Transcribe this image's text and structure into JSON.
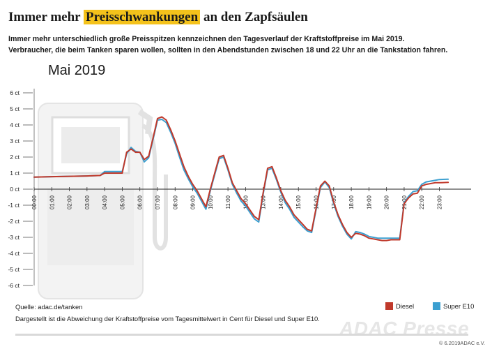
{
  "header": {
    "title_part1": "Immer mehr ",
    "title_highlight": "Preisschwankungen",
    "title_part2": " an den Zapfsäulen",
    "subtitle_line1": "Immer mehr unterschiedlich große Preisspitzen kennzeichnen den Tagesverlauf der Kraftstoffpreise im Mai 2019.",
    "subtitle_line2": "Verbraucher, die beim Tanken sparen wollen, sollten in den Abendstunden zwischen 18 und 22 Uhr an die Tankstation fahren."
  },
  "month_label": "Mai 2019",
  "footer": {
    "source": "Quelle: adac.de/tanken",
    "note": "Dargestellt ist die Abweichung der Kraftstoffpreise vom Tagesmittelwert in Cent für Diesel und Super E10."
  },
  "watermark": "ADAC Presse",
  "copyright": "© 6.2019ADAC e.V.",
  "colors": {
    "diesel": "#c0392b",
    "super_e10": "#3b9fd0",
    "highlight": "#f4c21b"
  },
  "chart_data": {
    "type": "line",
    "ylim": [
      -6,
      6
    ],
    "yticks": [
      "6 ct",
      "5 ct",
      "4 ct",
      "3 ct",
      "2 ct",
      "1 ct",
      "0 ct",
      "-1 ct",
      "-2 ct",
      "-3 ct",
      "-4 ct",
      "-5 ct",
      "-6 ct"
    ],
    "xticks": [
      "00:00",
      "01:00",
      "02:00",
      "03:00",
      "04:00",
      "05:00",
      "06:00",
      "07:00",
      "08:00",
      "09:00",
      "10:00",
      "11:00",
      "12:00",
      "13:00",
      "14:00",
      "15:00",
      "16:00",
      "17:00",
      "18:00",
      "19:00",
      "20:00",
      "21:00",
      "22:00",
      "23:00"
    ],
    "xlabel": "",
    "ylabel": "",
    "legend": "bottom-right",
    "series": [
      {
        "name": "Diesel",
        "x": [
          0,
          1,
          2,
          3,
          3.75,
          4,
          4.5,
          5,
          5.25,
          5.5,
          5.75,
          6.0,
          6.25,
          6.5,
          6.75,
          7.0,
          7.25,
          7.5,
          7.75,
          8.0,
          8.25,
          8.5,
          8.75,
          9.0,
          9.25,
          9.5,
          9.75,
          10.0,
          10.25,
          10.5,
          10.75,
          11.0,
          11.25,
          11.5,
          11.75,
          12.0,
          12.25,
          12.5,
          12.75,
          13.0,
          13.25,
          13.5,
          13.75,
          14.0,
          14.25,
          14.5,
          14.75,
          15.0,
          15.25,
          15.5,
          15.75,
          16.0,
          16.25,
          16.5,
          16.75,
          17.0,
          17.25,
          17.5,
          17.75,
          18.0,
          18.25,
          18.5,
          18.75,
          19.0,
          19.25,
          19.5,
          19.75,
          20.0,
          20.25,
          20.5,
          20.75,
          21.0,
          21.25,
          21.5,
          21.75,
          22.0,
          22.25,
          22.5,
          22.75,
          23.0,
          23.5
        ],
        "values": [
          0.75,
          0.78,
          0.8,
          0.82,
          0.85,
          1.0,
          1.0,
          1.0,
          2.3,
          2.5,
          2.3,
          2.3,
          1.85,
          2.05,
          3.2,
          4.4,
          4.5,
          4.3,
          3.7,
          3.0,
          2.2,
          1.4,
          0.8,
          0.3,
          -0.1,
          -0.6,
          -1.1,
          0.0,
          1.0,
          2.0,
          2.1,
          1.3,
          0.4,
          -0.1,
          -0.6,
          -0.9,
          -1.3,
          -1.7,
          -1.9,
          -0.2,
          1.3,
          1.4,
          0.7,
          -0.1,
          -0.7,
          -1.1,
          -1.6,
          -1.9,
          -2.2,
          -2.5,
          -2.6,
          -1.2,
          0.2,
          0.5,
          0.2,
          -0.8,
          -1.6,
          -2.2,
          -2.7,
          -3.0,
          -2.75,
          -2.8,
          -2.9,
          -3.05,
          -3.1,
          -3.15,
          -3.2,
          -3.2,
          -3.15,
          -3.15,
          -3.15,
          -0.9,
          -0.55,
          -0.3,
          -0.25,
          0.2,
          0.3,
          0.35,
          0.4,
          0.4,
          0.42
        ]
      },
      {
        "name": "Super E10",
        "x": [
          0,
          1,
          2,
          3,
          3.75,
          4,
          4.5,
          5,
          5.25,
          5.5,
          5.75,
          6.0,
          6.25,
          6.5,
          6.75,
          7.0,
          7.25,
          7.5,
          7.75,
          8.0,
          8.25,
          8.5,
          8.75,
          9.0,
          9.25,
          9.5,
          9.75,
          10.0,
          10.25,
          10.5,
          10.75,
          11.0,
          11.25,
          11.5,
          11.75,
          12.0,
          12.25,
          12.5,
          12.75,
          13.0,
          13.25,
          13.5,
          13.75,
          14.0,
          14.25,
          14.5,
          14.75,
          15.0,
          15.25,
          15.5,
          15.75,
          16.0,
          16.25,
          16.5,
          16.75,
          17.0,
          17.25,
          17.5,
          17.75,
          18.0,
          18.25,
          18.5,
          18.75,
          19.0,
          19.25,
          19.5,
          19.75,
          20.0,
          20.25,
          20.5,
          20.75,
          21.0,
          21.25,
          21.5,
          21.75,
          22.0,
          22.25,
          22.5,
          22.75,
          23.0,
          23.5
        ],
        "values": [
          0.75,
          0.78,
          0.8,
          0.82,
          0.85,
          1.1,
          1.1,
          1.1,
          2.2,
          2.6,
          2.35,
          2.3,
          1.7,
          1.95,
          3.1,
          4.3,
          4.35,
          4.15,
          3.55,
          2.85,
          2.0,
          1.2,
          0.65,
          0.15,
          -0.25,
          -0.75,
          -1.25,
          -0.1,
          0.9,
          1.9,
          2.0,
          1.2,
          0.3,
          -0.25,
          -0.75,
          -1.05,
          -1.45,
          -1.85,
          -2.05,
          -0.3,
          1.2,
          1.3,
          0.6,
          -0.2,
          -0.85,
          -1.25,
          -1.75,
          -2.05,
          -2.35,
          -2.6,
          -2.7,
          -1.3,
          0.1,
          0.45,
          0.1,
          -0.9,
          -1.7,
          -2.3,
          -2.8,
          -3.1,
          -2.65,
          -2.7,
          -2.8,
          -2.95,
          -3.0,
          -3.05,
          -3.05,
          -3.05,
          -3.05,
          -3.05,
          -3.05,
          -0.85,
          -0.45,
          -0.15,
          -0.1,
          0.3,
          0.45,
          0.5,
          0.55,
          0.6,
          0.62
        ]
      }
    ]
  }
}
